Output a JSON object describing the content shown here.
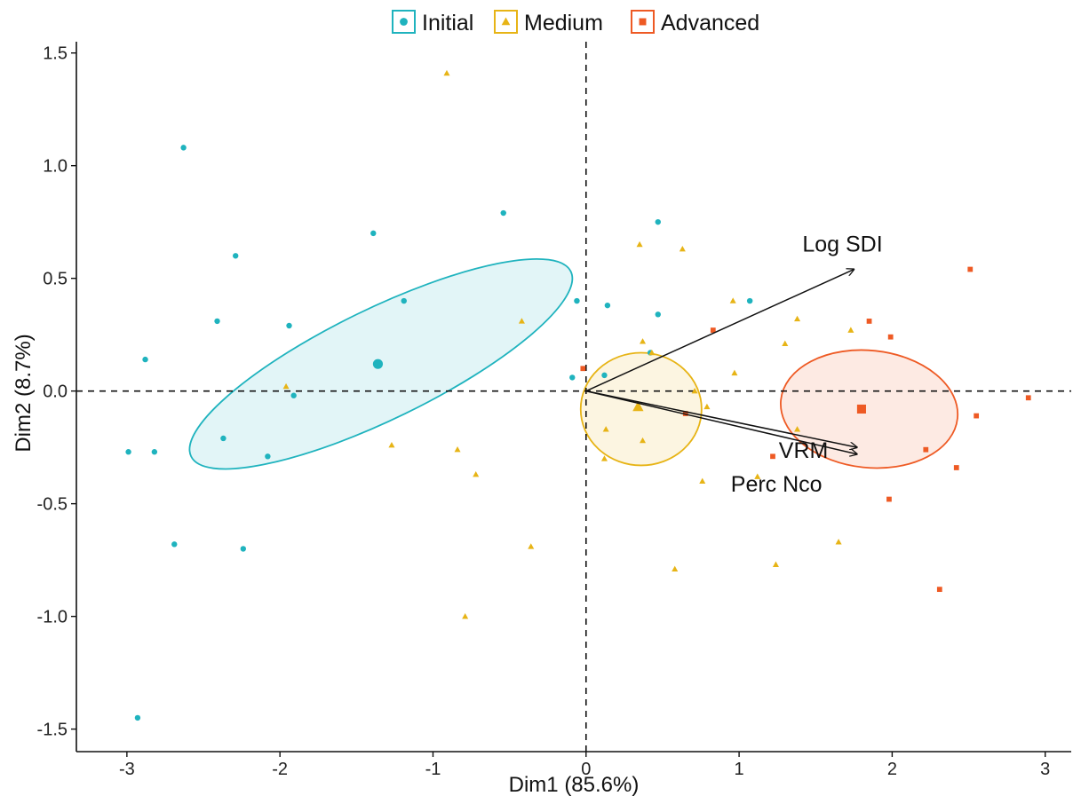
{
  "colors": {
    "Initial": "#1fb3be",
    "Medium": "#e7b416",
    "Advanced": "#ee5a24"
  },
  "chart_data": {
    "type": "scatter",
    "title": "",
    "xlabel": "Dim1 (85.6%)",
    "ylabel": "Dim2 (8.7%)",
    "xlim": [
      -3.33,
      3.17
    ],
    "ylim": [
      -1.6,
      1.55
    ],
    "xticks": [
      -3,
      -2,
      -1,
      0,
      1,
      2,
      3
    ],
    "xtick_labels": [
      "-3",
      "-2",
      "-1",
      "0",
      "1",
      "2",
      "3"
    ],
    "yticks": [
      -1.5,
      -1.0,
      -0.5,
      0.0,
      0.5,
      1.0,
      1.5
    ],
    "ytick_labels": [
      "-1.5",
      "-1.0",
      "-0.5",
      "0.0",
      "0.5",
      "1.0",
      "1.5"
    ],
    "grid": false,
    "legend_position": "top",
    "reference_lines": {
      "x": 0,
      "y": 0,
      "style": "dashed"
    },
    "series": [
      {
        "name": "Initial",
        "marker": "circle",
        "points": [
          [
            -2.63,
            1.08
          ],
          [
            -1.39,
            0.7
          ],
          [
            -2.29,
            0.6
          ],
          [
            -0.54,
            0.79
          ],
          [
            0.47,
            0.75
          ],
          [
            -2.41,
            0.31
          ],
          [
            -1.94,
            0.29
          ],
          [
            -1.19,
            0.4
          ],
          [
            -0.06,
            0.4
          ],
          [
            0.14,
            0.38
          ],
          [
            0.47,
            0.34
          ],
          [
            1.07,
            0.4
          ],
          [
            -2.88,
            0.14
          ],
          [
            0.42,
            0.17
          ],
          [
            -0.09,
            0.06
          ],
          [
            0.12,
            0.07
          ],
          [
            -1.91,
            -0.02
          ],
          [
            -2.99,
            -0.27
          ],
          [
            -2.82,
            -0.27
          ],
          [
            -2.37,
            -0.21
          ],
          [
            -2.08,
            -0.29
          ],
          [
            -2.69,
            -0.68
          ],
          [
            -2.24,
            -0.7
          ],
          [
            -2.93,
            -1.45
          ]
        ],
        "centroid": [
          -1.36,
          0.12
        ],
        "ellipse": {
          "center": [
            -1.34,
            0.12
          ],
          "rx": 1.38,
          "ry": 0.245,
          "angle_deg": 26
        }
      },
      {
        "name": "Medium",
        "marker": "triangle",
        "points": [
          [
            -0.91,
            1.41
          ],
          [
            0.35,
            0.65
          ],
          [
            0.63,
            0.63
          ],
          [
            -0.42,
            0.31
          ],
          [
            0.96,
            0.4
          ],
          [
            1.38,
            0.32
          ],
          [
            1.73,
            0.27
          ],
          [
            0.37,
            0.22
          ],
          [
            1.3,
            0.21
          ],
          [
            0.43,
            0.17
          ],
          [
            0.97,
            0.08
          ],
          [
            -1.96,
            0.02
          ],
          [
            0.71,
            0.0
          ],
          [
            0.79,
            -0.07
          ],
          [
            0.13,
            -0.17
          ],
          [
            0.37,
            -0.22
          ],
          [
            1.38,
            -0.17
          ],
          [
            -1.27,
            -0.24
          ],
          [
            -0.84,
            -0.26
          ],
          [
            -0.72,
            -0.37
          ],
          [
            0.12,
            -0.3
          ],
          [
            0.76,
            -0.4
          ],
          [
            1.12,
            -0.38
          ],
          [
            -0.36,
            -0.69
          ],
          [
            1.65,
            -0.67
          ],
          [
            0.58,
            -0.79
          ],
          [
            1.24,
            -0.77
          ],
          [
            -0.79,
            -1.0
          ]
        ],
        "centroid": [
          0.34,
          -0.07
        ],
        "ellipse": {
          "center": [
            0.36,
            -0.08
          ],
          "rx": 0.395,
          "ry": 0.25,
          "angle_deg": 0
        }
      },
      {
        "name": "Advanced",
        "marker": "square",
        "points": [
          [
            2.51,
            0.54
          ],
          [
            1.85,
            0.31
          ],
          [
            1.99,
            0.24
          ],
          [
            0.83,
            0.27
          ],
          [
            -0.02,
            0.1
          ],
          [
            0.65,
            -0.1
          ],
          [
            2.55,
            -0.11
          ],
          [
            2.89,
            -0.03
          ],
          [
            1.22,
            -0.29
          ],
          [
            2.22,
            -0.26
          ],
          [
            2.42,
            -0.34
          ],
          [
            1.98,
            -0.48
          ],
          [
            2.31,
            -0.88
          ]
        ],
        "centroid": [
          1.8,
          -0.08
        ],
        "ellipse": {
          "center": [
            1.85,
            -0.08
          ],
          "rx": 0.58,
          "ry": 0.26,
          "angle_deg": -6
        }
      }
    ],
    "vectors": [
      {
        "name": "Log SDI",
        "x": 1.75,
        "y": 0.54
      },
      {
        "name": "VRM",
        "x": 1.77,
        "y": -0.25
      },
      {
        "name": "Perc Nco",
        "x": 1.77,
        "y": -0.28
      }
    ]
  }
}
